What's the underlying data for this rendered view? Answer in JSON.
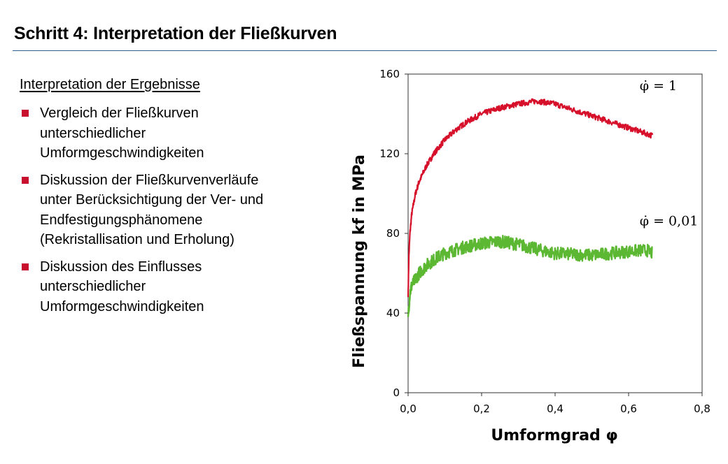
{
  "slide": {
    "title": "Schritt 4: Interpretation der Fließkurven",
    "heading": "Interpretation der Ergebnisse",
    "bullets": [
      [
        "Vergleich der Fließkurven",
        "unterschiedlicher",
        "Umformgeschwindigkeiten"
      ],
      [
        "Diskussion der Fließkurvenverläufe",
        "unter Berücksichtigung der Ver- und",
        "Endfestigungsphänomene",
        "(Rekristallisation und Erholung)"
      ],
      [
        "Diskussion des Einflusses",
        "unterschiedlicher",
        "Umformgeschwindigkeiten"
      ]
    ],
    "colors": {
      "bullet": "#c8102e",
      "rule": "#2e5f8f"
    }
  },
  "chart_data": {
    "type": "line",
    "xlabel": "Umformgrad φ",
    "ylabel": "Fließspannung kf in MPa",
    "xlim": [
      0,
      0.8
    ],
    "ylim": [
      0,
      160
    ],
    "xticks": [
      "0,0",
      "0,2",
      "0,4",
      "0,6",
      "0,8"
    ],
    "xtick_values": [
      0,
      0.2,
      0.4,
      0.6,
      0.8
    ],
    "yticks": [
      "0",
      "40",
      "80",
      "120",
      "160"
    ],
    "ytick_values": [
      0,
      40,
      80,
      120,
      160
    ],
    "grid": false,
    "series": [
      {
        "name": "φ̇ = 1",
        "color": "#d6102a",
        "x": [
          0.0,
          0.002,
          0.005,
          0.01,
          0.02,
          0.03,
          0.05,
          0.07,
          0.1,
          0.13,
          0.16,
          0.2,
          0.25,
          0.3,
          0.35,
          0.4,
          0.45,
          0.5,
          0.55,
          0.6,
          0.65,
          0.665
        ],
        "y": [
          48,
          68,
          80,
          90,
          100,
          106,
          114,
          120,
          127,
          132,
          136,
          140,
          143,
          145,
          146.5,
          145,
          142,
          139,
          136,
          133,
          130,
          129
        ]
      },
      {
        "name": "φ̇ = 0,01",
        "color": "#5cb832",
        "x": [
          0.0,
          0.005,
          0.01,
          0.02,
          0.03,
          0.05,
          0.08,
          0.1,
          0.15,
          0.2,
          0.25,
          0.3,
          0.35,
          0.4,
          0.45,
          0.5,
          0.55,
          0.6,
          0.65,
          0.665
        ],
        "y": [
          38,
          50,
          54,
          57,
          60,
          64,
          68,
          70,
          73,
          75,
          76,
          74.5,
          72,
          70,
          69.5,
          69,
          70,
          71,
          71.5,
          70
        ]
      }
    ]
  }
}
